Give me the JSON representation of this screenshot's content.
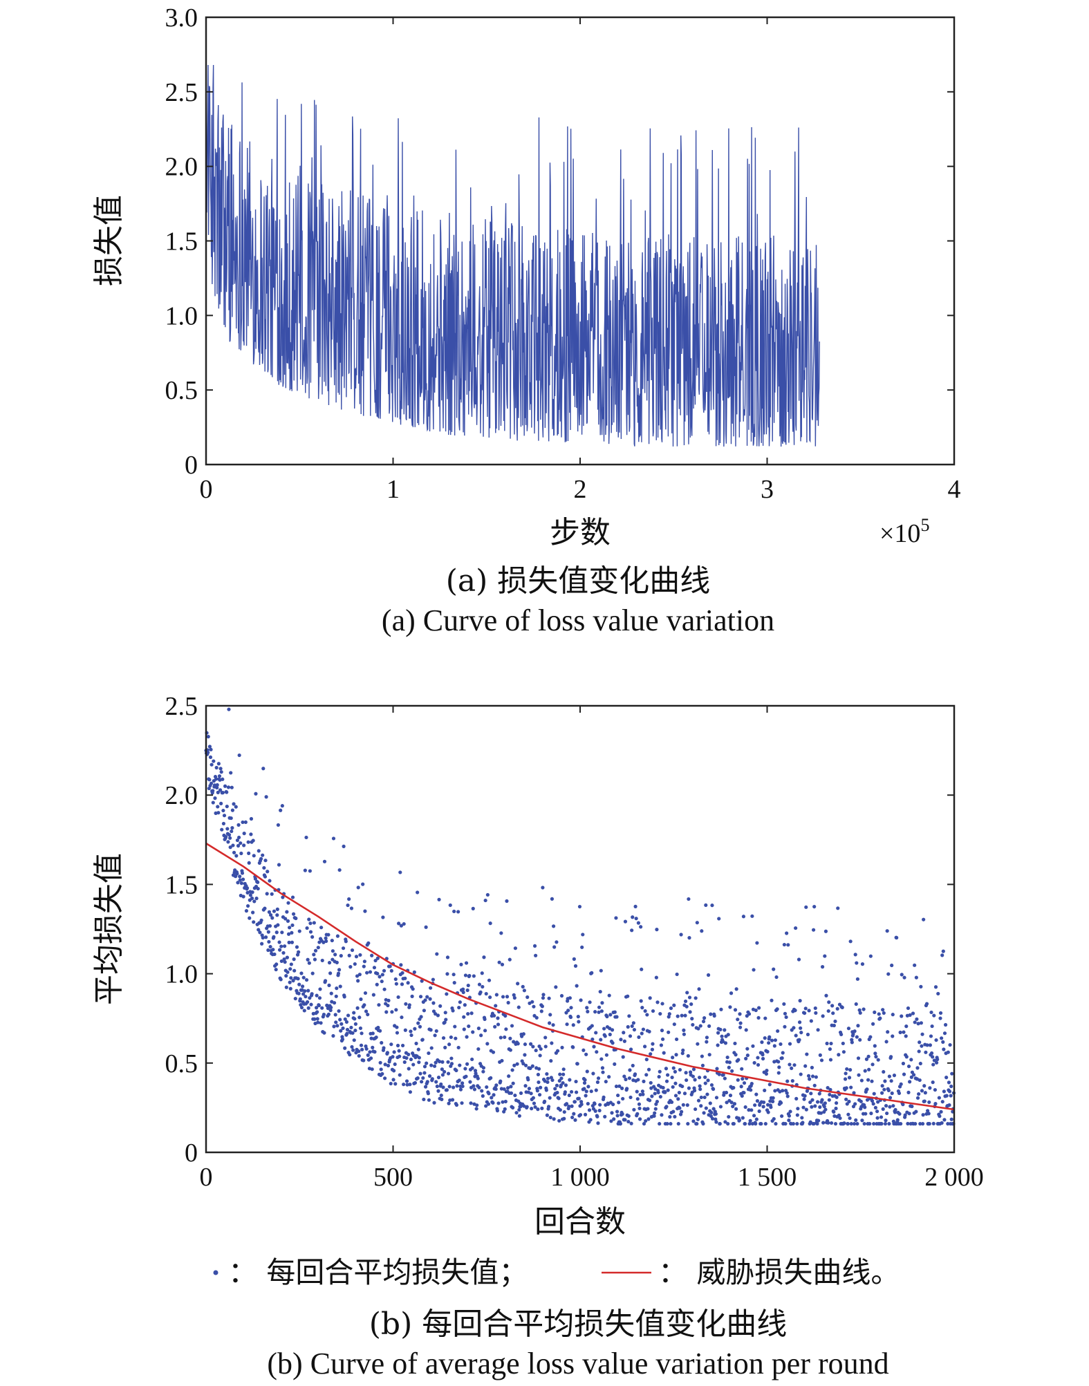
{
  "chart_data": [
    {
      "type": "line",
      "xlabel": "步数",
      "ylabel": "损失值",
      "x_multiplier": "×10",
      "x_multiplier_exp": "5",
      "xlim": [
        0,
        4
      ],
      "ylim": [
        0,
        3.0
      ],
      "x_ticks": [
        "0",
        "1",
        "2",
        "3",
        "4"
      ],
      "y_ticks": [
        "0",
        "0.5",
        "1.0",
        "1.5",
        "2.0",
        "2.5",
        "3.0"
      ],
      "caption_cn": "(a) 损失值变化曲线",
      "caption_en": "(a) Curve of loss value variation",
      "line_color": "#3a4fa8",
      "x_end": 3.28,
      "series": [
        {
          "x": [
            0,
            0.05,
            0.1,
            0.2,
            0.3,
            0.5,
            0.75,
            1.0,
            1.25,
            1.5,
            1.75,
            2.0,
            2.25,
            2.5,
            2.75,
            3.0,
            3.28
          ],
          "upper": [
            2.6,
            2.6,
            2.5,
            2.3,
            2.1,
            1.95,
            1.85,
            1.75,
            1.7,
            1.65,
            1.6,
            1.6,
            1.55,
            1.55,
            1.55,
            1.55,
            1.6
          ],
          "lower": [
            1.7,
            0.95,
            0.85,
            0.75,
            0.6,
            0.45,
            0.35,
            0.28,
            0.2,
            0.18,
            0.15,
            0.15,
            0.12,
            0.12,
            0.12,
            0.12,
            0.12
          ]
        }
      ]
    },
    {
      "type": "scatter",
      "xlabel": "回合数",
      "ylabel": "平均损失值",
      "xlim": [
        0,
        2000
      ],
      "ylim": [
        0,
        2.5
      ],
      "x_ticks": [
        "0",
        "500",
        "1 000",
        "1 500",
        "2 000"
      ],
      "y_ticks": [
        "0",
        "0.5",
        "1.0",
        "1.5",
        "2.0",
        "2.5"
      ],
      "caption_cn": "(b) 每回合平均损失值变化曲线",
      "caption_en": "(b) Curve of average loss value variation per round",
      "scatter_color": "#3a4fa8",
      "fit_color": "#d42a2a",
      "n_points": 2000,
      "legend": {
        "scatter_label": "：  每回合平均损失值；",
        "line_label": "：  威胁损失曲线。"
      },
      "series": [
        {
          "name": "每回合平均损失值",
          "kind": "scatter",
          "mean": {
            "x": [
              0,
              100,
              200,
              300,
              400,
              500,
              600,
              800,
              1000,
              1200,
              1400,
              1600,
              1800,
              2000
            ],
            "y": [
              2.2,
              1.55,
              1.15,
              0.9,
              0.75,
              0.62,
              0.55,
              0.48,
              0.43,
              0.4,
              0.38,
              0.37,
              0.36,
              0.35
            ]
          }
        },
        {
          "name": "威胁损失曲线",
          "kind": "line",
          "x": [
            0,
            100,
            200,
            300,
            400,
            500,
            600,
            700,
            800,
            900,
            1000,
            1100,
            1200,
            1300,
            1400,
            1500,
            1600,
            1700,
            1800,
            1900,
            2000
          ],
          "y": [
            1.73,
            1.6,
            1.45,
            1.32,
            1.18,
            1.05,
            0.95,
            0.86,
            0.78,
            0.7,
            0.64,
            0.58,
            0.53,
            0.48,
            0.44,
            0.4,
            0.36,
            0.33,
            0.3,
            0.27,
            0.24
          ]
        }
      ]
    }
  ]
}
